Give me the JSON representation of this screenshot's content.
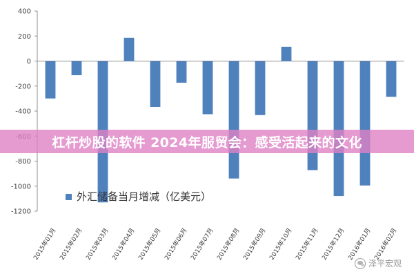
{
  "chart_data": {
    "type": "bar",
    "categories": [
      "2015年01月",
      "2015年02月",
      "2015年03月",
      "2015年04月",
      "2015年05月",
      "2015年06月",
      "2015年07月",
      "2015年08月",
      "2015年09月",
      "2015年10月",
      "2015年11月",
      "2015年12月",
      "2016年01月",
      "2016年02月"
    ],
    "series": [
      {
        "name": "外汇储备当月增减（亿美元）",
        "values": [
          -299,
          -113,
          -1130,
          186,
          -367,
          -173,
          -425,
          -939,
          -432,
          114,
          -872,
          -1079,
          -995,
          -286
        ]
      }
    ],
    "yticks": [
      "400",
      "200",
      "0",
      "-200",
      "-400",
      "-600",
      "-800",
      "-1000",
      "-1200"
    ],
    "ylim": [
      -1200,
      400
    ],
    "grid": false,
    "legend_position": "bottom-left",
    "colors": {
      "bar": "#4f81bd",
      "axis": "#8c8c8c",
      "text": "#404040"
    }
  },
  "banner": {
    "text": "杠杆炒股的软件 2024年服贸会：感受活起来的文化"
  },
  "watermark": {
    "text": "泽平宏观",
    "icon": "wechat-icon"
  }
}
